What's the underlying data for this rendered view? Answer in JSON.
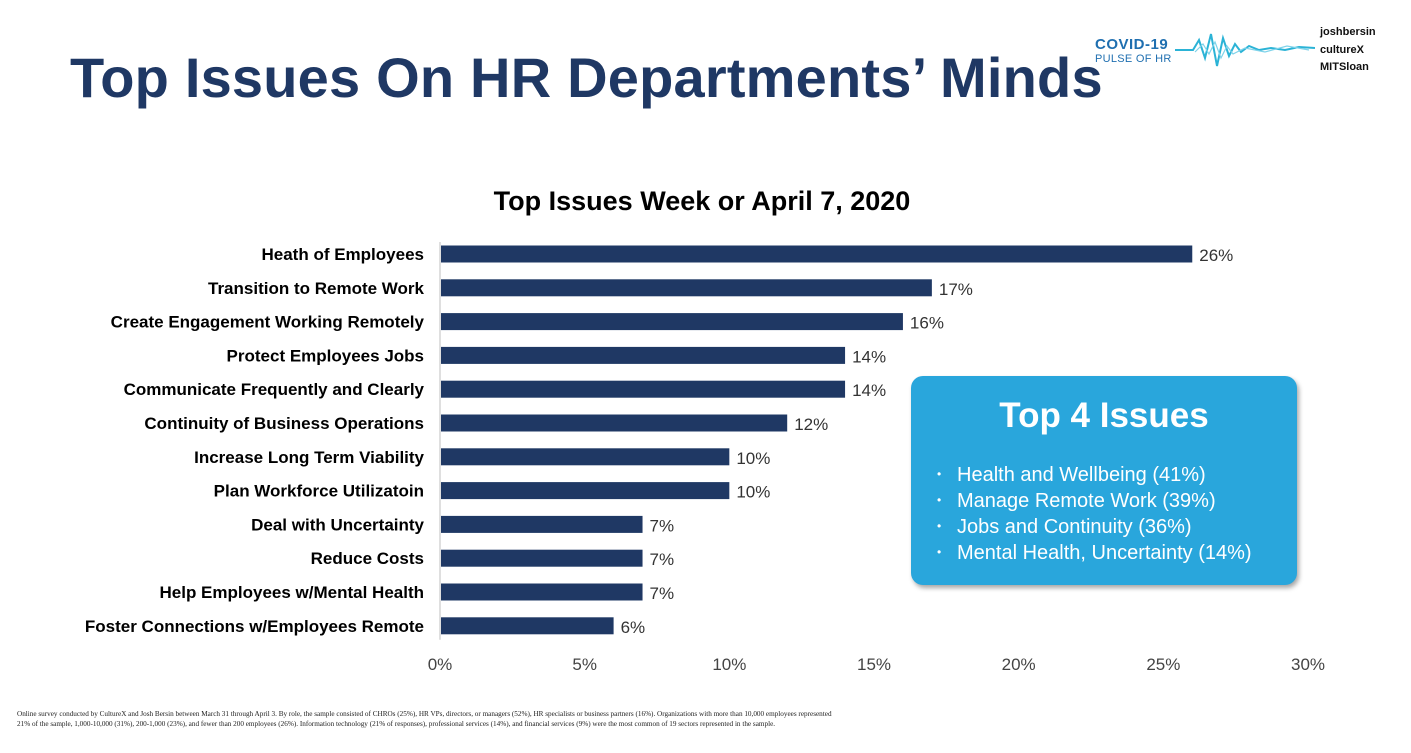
{
  "page": {
    "title": "Top Issues On HR Departments’ Minds",
    "brand": {
      "title": "COVID-19",
      "subtitle": "PULSE OF HR",
      "logos": [
        "joshbersin",
        "cultureX",
        "MITSloan"
      ]
    },
    "footnote": "Online survey conducted by CultureX and Josh Bersin between March 31 through April 3. By role, the sample consisted of CHROs (25%), HR VPs, directors, or managers (52%), HR specialists or business partners (16%). Organizations with more than 10,000 employees represented 21% of the sample, 1,000-10,000 (31%), 200-1,000 (23%), and fewer than 200 employees (26%). Information technology (21% of responses), professional services (14%), and financial services (9%) were the most common of 19 sectors represented in the sample."
  },
  "callout": {
    "title": "Top 4 Issues",
    "items": [
      "Health and Wellbeing (41%)",
      "Manage Remote Work (39%)",
      "Jobs and Continuity (36%)",
      "Mental Health, Uncertainty (14%)"
    ]
  },
  "colors": {
    "title": "#1f3864",
    "bar": "#1f3864",
    "callout": "#29a6dc",
    "brand": "#1f6fb0"
  },
  "chart_data": {
    "type": "bar",
    "orientation": "horizontal",
    "title": "Top Issues Week or April 7, 2020",
    "categories": [
      "Heath of Employees",
      "Transition to Remote Work",
      "Create Engagement Working Remotely",
      "Protect Employees Jobs",
      "Communicate Frequently and Clearly",
      "Continuity of Business Operations",
      "Increase Long Term Viability",
      "Plan Workforce Utilizatoin",
      "Deal with Uncertainty",
      "Reduce Costs",
      "Help Employees w/Mental Health",
      "Foster Connections w/Employees Remote"
    ],
    "values": [
      26,
      17,
      16,
      14,
      14,
      12,
      10,
      10,
      7,
      7,
      7,
      6
    ],
    "value_labels": [
      "26%",
      "17%",
      "16%",
      "14%",
      "14%",
      "12%",
      "10%",
      "10%",
      "7%",
      "7%",
      "7%",
      "6%"
    ],
    "xlim": [
      0,
      30
    ],
    "xticks": [
      0,
      5,
      10,
      15,
      20,
      25,
      30
    ],
    "xtick_labels": [
      "0%",
      "5%",
      "10%",
      "15%",
      "20%",
      "25%",
      "30%"
    ],
    "grid": false,
    "legend": "none"
  }
}
